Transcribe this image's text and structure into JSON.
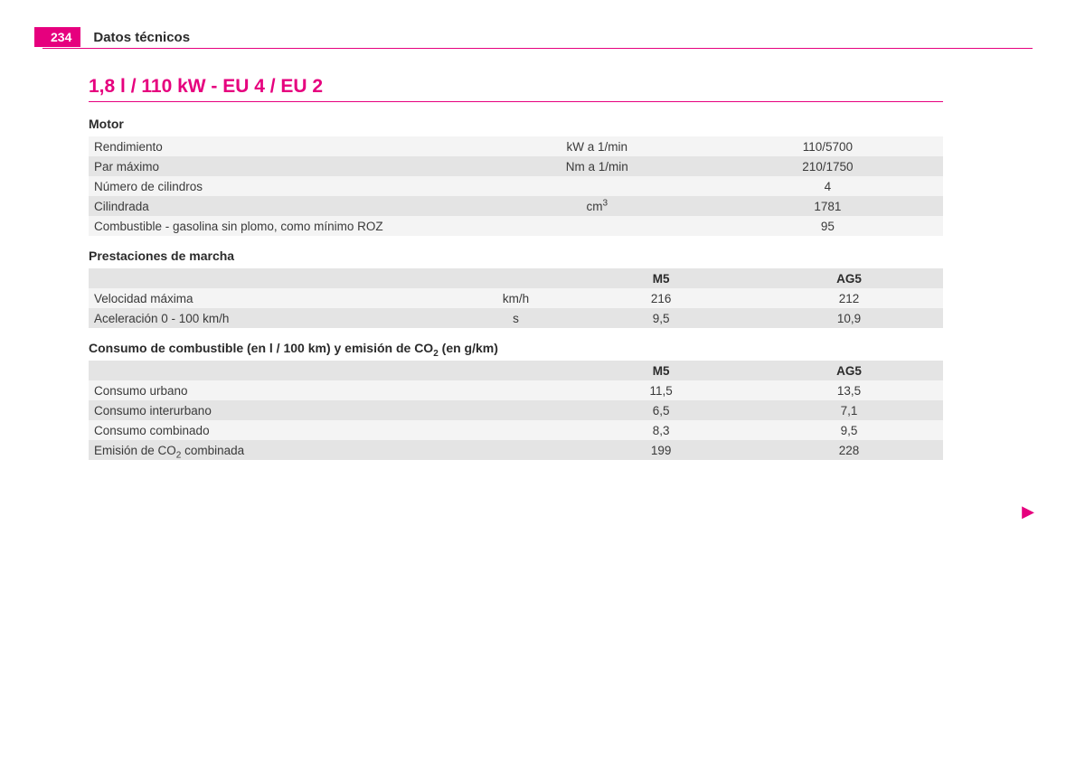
{
  "accent_color": "#e6007e",
  "row_light": "#f4f4f4",
  "row_dark": "#e4e4e4",
  "header": {
    "page_number": "234",
    "section": "Datos técnicos"
  },
  "title": "1,8 l / 110 kW - EU 4 / EU 2",
  "motor": {
    "heading": "Motor",
    "rows": [
      {
        "label": "Rendimiento",
        "unit": "kW a 1/min",
        "value": "110/5700"
      },
      {
        "label": "Par máximo",
        "unit": "Nm a 1/min",
        "value": "210/1750"
      },
      {
        "label": "Número de cilindros",
        "unit": "",
        "value": "4"
      },
      {
        "label": "Cilindrada",
        "unit": "cm",
        "unit_sup": "3",
        "value": "1781"
      },
      {
        "label": "Combustible - gasolina sin plomo, como mínimo ROZ",
        "unit": "",
        "value": "95"
      }
    ],
    "col_widths": [
      "46%",
      "27%",
      "27%"
    ]
  },
  "prestaciones": {
    "heading": "Prestaciones de marcha",
    "head": [
      "",
      "",
      "M5",
      "AG5"
    ],
    "rows": [
      {
        "label": "Velocidad máxima",
        "unit": "km/h",
        "v1": "216",
        "v2": "212"
      },
      {
        "label": "Aceleración 0 - 100 km/h",
        "unit": "s",
        "v1": "9,5",
        "v2": "10,9"
      }
    ],
    "col_widths": [
      "44%",
      "12%",
      "22%",
      "22%"
    ]
  },
  "consumo": {
    "heading_prefix": "Consumo de combustible (en l / 100 km) y emisión de CO",
    "heading_sub": "2",
    "heading_suffix": " (en g/km)",
    "head": [
      "",
      "M5",
      "AG5"
    ],
    "rows": [
      {
        "label": "Consumo urbano",
        "v1": "11,5",
        "v2": "13,5"
      },
      {
        "label": "Consumo interurbano",
        "v1": "6,5",
        "v2": "7,1"
      },
      {
        "label": "Consumo combinado",
        "v1": "8,3",
        "v2": "9,5"
      },
      {
        "label_prefix": "Emisión de CO",
        "label_sub": "2",
        "label_suffix": " combinada",
        "v1": "199",
        "v2": "228"
      }
    ],
    "col_widths": [
      "56%",
      "22%",
      "22%"
    ]
  },
  "next_arrow": "▶"
}
